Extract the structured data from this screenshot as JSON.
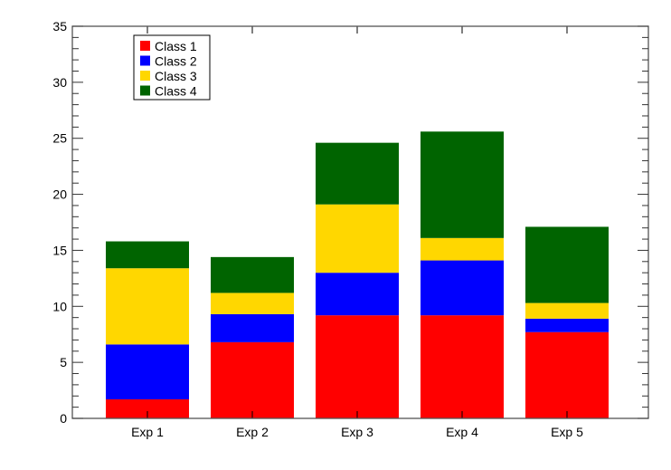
{
  "chart_data": {
    "type": "bar",
    "stacked": true,
    "title": "",
    "xlabel": "",
    "ylabel": "",
    "categories": [
      "Exp 1",
      "Exp 2",
      "Exp 3",
      "Exp 4",
      "Exp 5"
    ],
    "ylim": [
      0,
      35
    ],
    "yticks": [
      0,
      5,
      10,
      15,
      20,
      25,
      30,
      35
    ],
    "grid": false,
    "legend_position": "top-left",
    "series": [
      {
        "name": "Class 1",
        "color": "#ff0000",
        "values": [
          1.7,
          6.8,
          9.2,
          9.2,
          7.7
        ]
      },
      {
        "name": "Class 2",
        "color": "#0000ff",
        "values": [
          4.9,
          2.5,
          3.8,
          4.9,
          1.2
        ]
      },
      {
        "name": "Class 3",
        "color": "#ffd700",
        "values": [
          6.8,
          1.9,
          6.1,
          2.0,
          1.4
        ]
      },
      {
        "name": "Class 4",
        "color": "#006400",
        "values": [
          2.4,
          3.2,
          5.5,
          9.5,
          6.8
        ]
      }
    ]
  }
}
